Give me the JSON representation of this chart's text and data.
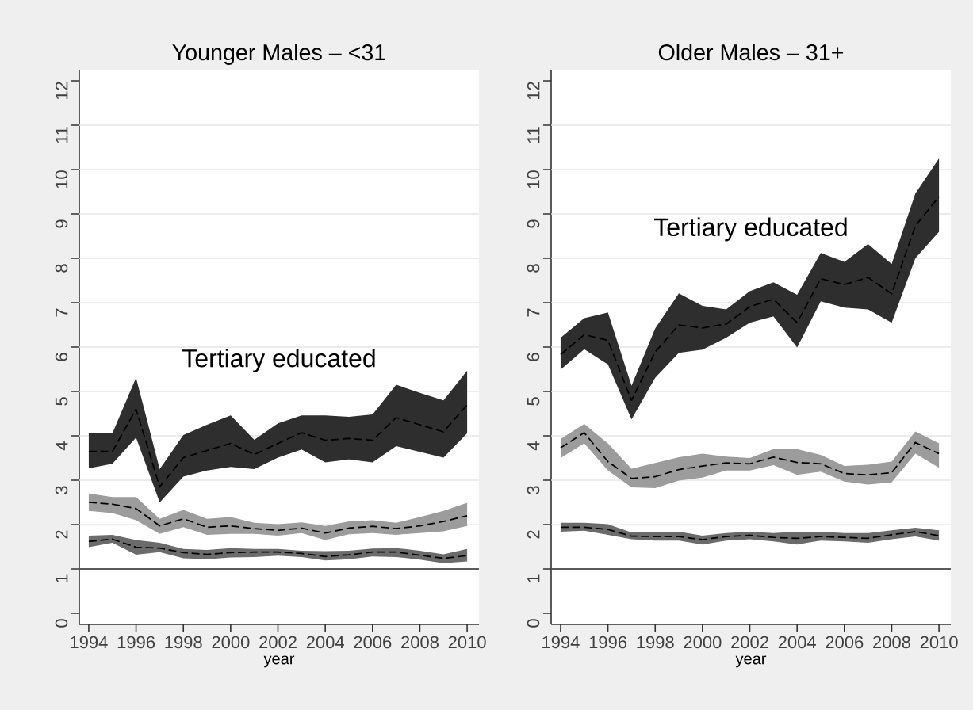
{
  "chart_data": [
    {
      "type": "line",
      "title": "Younger Males – <31",
      "xlabel": "year",
      "x": [
        1994,
        1995,
        1996,
        1997,
        1998,
        1999,
        2000,
        2001,
        2002,
        2003,
        2004,
        2005,
        2006,
        2007,
        2008,
        2009,
        2010
      ],
      "xlim": [
        1993.6,
        2010.5
      ],
      "ylim": [
        -0.25,
        12.25
      ],
      "xticks": [
        1994,
        1996,
        1998,
        2000,
        2002,
        2004,
        2006,
        2008,
        2010
      ],
      "yticks": [
        0,
        1,
        2,
        3,
        4,
        5,
        6,
        7,
        8,
        9,
        10,
        11,
        12
      ],
      "grid": "y",
      "line_style": "dashed",
      "ref_lines": [
        {
          "axis": "y",
          "value": 1,
          "color": "#2b2b2b"
        }
      ],
      "series": [
        {
          "name": "Tertiary educated",
          "color": "#000000",
          "values": [
            3.65,
            3.65,
            4.6,
            2.85,
            3.51,
            3.67,
            3.83,
            3.58,
            3.83,
            4.07,
            3.9,
            3.94,
            3.9,
            4.41,
            4.25,
            4.09,
            4.7
          ],
          "upper": [
            4.06,
            4.06,
            5.31,
            3.25,
            4.02,
            4.25,
            4.46,
            3.91,
            4.28,
            4.46,
            4.46,
            4.43,
            4.48,
            5.15,
            4.97,
            4.8,
            5.47
          ],
          "lower": [
            3.27,
            3.37,
            3.96,
            2.5,
            3.08,
            3.22,
            3.3,
            3.25,
            3.51,
            3.69,
            3.4,
            3.47,
            3.4,
            3.77,
            3.64,
            3.51,
            4.06
          ]
        },
        {
          "color": "#000000",
          "values": [
            2.5,
            2.46,
            2.36,
            1.97,
            2.13,
            1.94,
            1.97,
            1.91,
            1.87,
            1.92,
            1.81,
            1.92,
            1.96,
            1.91,
            1.97,
            2.07,
            2.2
          ],
          "upper": [
            2.7,
            2.62,
            2.62,
            2.13,
            2.33,
            2.13,
            2.17,
            2.04,
            2.01,
            2.05,
            1.97,
            2.07,
            2.1,
            2.04,
            2.17,
            2.31,
            2.49
          ],
          "lower": [
            2.31,
            2.26,
            2.1,
            1.79,
            1.94,
            1.77,
            1.79,
            1.79,
            1.75,
            1.81,
            1.65,
            1.78,
            1.81,
            1.77,
            1.81,
            1.85,
            1.97
          ]
        },
        {
          "color": "#000000",
          "values": [
            1.62,
            1.67,
            1.49,
            1.47,
            1.37,
            1.33,
            1.37,
            1.38,
            1.38,
            1.35,
            1.28,
            1.32,
            1.38,
            1.38,
            1.31,
            1.24,
            1.3
          ],
          "upper": [
            1.75,
            1.77,
            1.65,
            1.59,
            1.45,
            1.43,
            1.47,
            1.45,
            1.45,
            1.41,
            1.4,
            1.41,
            1.46,
            1.47,
            1.41,
            1.33,
            1.45
          ],
          "lower": [
            1.49,
            1.59,
            1.32,
            1.38,
            1.24,
            1.22,
            1.26,
            1.27,
            1.3,
            1.27,
            1.19,
            1.22,
            1.28,
            1.27,
            1.21,
            1.13,
            1.17
          ]
        }
      ]
    },
    {
      "type": "line",
      "title": "Older Males – 31+",
      "xlabel": "year",
      "x": [
        1994,
        1995,
        1996,
        1997,
        1998,
        1999,
        2000,
        2001,
        2002,
        2003,
        2004,
        2005,
        2006,
        2007,
        2008,
        2009,
        2010
      ],
      "xlim": [
        1993.6,
        2010.5
      ],
      "ylim": [
        -0.25,
        12.25
      ],
      "xticks": [
        1994,
        1996,
        1998,
        2000,
        2002,
        2004,
        2006,
        2008,
        2010
      ],
      "yticks": [
        0,
        1,
        2,
        3,
        4,
        5,
        6,
        7,
        8,
        9,
        10,
        11,
        12
      ],
      "grid": "y",
      "line_style": "dashed",
      "ref_lines": [
        {
          "axis": "y",
          "value": 1,
          "color": "#2b2b2b"
        }
      ],
      "series": [
        {
          "name": "Tertiary educated",
          "color": "#000000",
          "values": [
            5.83,
            6.28,
            6.15,
            4.8,
            5.89,
            6.5,
            6.43,
            6.52,
            6.91,
            7.08,
            6.55,
            7.54,
            7.41,
            7.57,
            7.2,
            8.73,
            9.39
          ],
          "upper": [
            6.21,
            6.65,
            6.78,
            5.13,
            6.42,
            7.21,
            6.93,
            6.85,
            7.26,
            7.46,
            7.18,
            8.12,
            7.92,
            8.32,
            7.87,
            9.46,
            10.25
          ],
          "lower": [
            5.49,
            5.95,
            5.61,
            4.37,
            5.31,
            5.87,
            5.94,
            6.21,
            6.55,
            6.69,
            5.99,
            7.03,
            6.89,
            6.85,
            6.55,
            8.0,
            8.6
          ]
        },
        {
          "color": "#000000",
          "values": [
            3.73,
            4.07,
            3.42,
            3.04,
            3.08,
            3.24,
            3.32,
            3.39,
            3.37,
            3.52,
            3.4,
            3.37,
            3.15,
            3.12,
            3.17,
            3.85,
            3.6
          ],
          "upper": [
            3.93,
            4.27,
            3.83,
            3.26,
            3.39,
            3.52,
            3.6,
            3.53,
            3.5,
            3.7,
            3.7,
            3.57,
            3.32,
            3.35,
            3.42,
            4.1,
            3.83
          ],
          "lower": [
            3.5,
            3.83,
            3.22,
            2.84,
            2.82,
            2.99,
            3.06,
            3.22,
            3.22,
            3.34,
            3.12,
            3.19,
            2.97,
            2.9,
            2.95,
            3.6,
            3.28
          ]
        },
        {
          "color": "#000000",
          "values": [
            1.94,
            1.94,
            1.89,
            1.74,
            1.73,
            1.73,
            1.66,
            1.73,
            1.76,
            1.71,
            1.69,
            1.73,
            1.71,
            1.69,
            1.77,
            1.84,
            1.75
          ],
          "upper": [
            2.04,
            2.04,
            2.01,
            1.82,
            1.84,
            1.84,
            1.75,
            1.81,
            1.84,
            1.81,
            1.84,
            1.84,
            1.81,
            1.81,
            1.87,
            1.93,
            1.87
          ],
          "lower": [
            1.84,
            1.86,
            1.77,
            1.67,
            1.64,
            1.64,
            1.55,
            1.64,
            1.67,
            1.62,
            1.55,
            1.64,
            1.62,
            1.59,
            1.67,
            1.73,
            1.64
          ]
        }
      ]
    }
  ]
}
